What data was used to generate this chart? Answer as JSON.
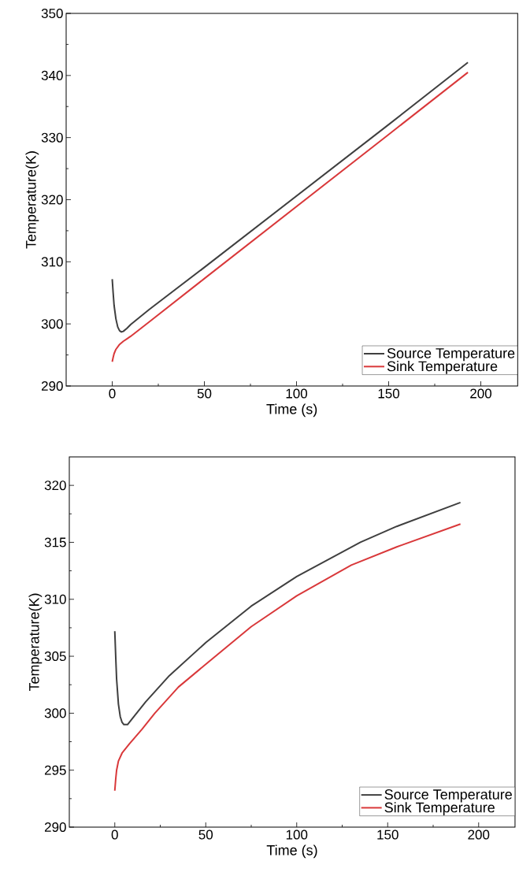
{
  "chart_data": [
    {
      "type": "line",
      "xlabel": "Time (s)",
      "ylabel": "Temperature(K)",
      "xlim": [
        -25,
        220
      ],
      "ylim": [
        290,
        350
      ],
      "xticks": [
        0,
        50,
        100,
        150,
        200
      ],
      "yticks": [
        290,
        300,
        310,
        320,
        330,
        340,
        350
      ],
      "legend": "bottom right",
      "grid": false,
      "series": [
        {
          "name": "Source Temperature",
          "color": "#3f3f3f",
          "x": [
            0,
            0.5,
            1,
            2,
            3,
            4,
            5,
            6,
            8,
            10,
            20,
            50,
            100,
            150,
            193
          ],
          "values": [
            307.2,
            305,
            303,
            300.8,
            299.5,
            298.9,
            298.7,
            298.8,
            299.3,
            299.9,
            302.3,
            309.1,
            320.6,
            332.1,
            342.1
          ]
        },
        {
          "name": "Sink Temperature",
          "color": "#d9383a",
          "x": [
            0,
            0.5,
            1,
            2,
            4,
            6,
            8,
            10,
            20,
            50,
            100,
            150,
            193
          ],
          "values": [
            293.9,
            294.6,
            295.2,
            295.9,
            296.7,
            297.2,
            297.6,
            298,
            300.3,
            307.3,
            318.9,
            330.5,
            340.5
          ]
        }
      ]
    },
    {
      "type": "line",
      "xlabel": "Time (s)",
      "ylabel": "Temperature(K)",
      "xlim": [
        -25,
        220
      ],
      "ylim": [
        290,
        322.5
      ],
      "xticks": [
        0,
        50,
        100,
        150,
        200
      ],
      "yticks": [
        290,
        295,
        300,
        305,
        310,
        315,
        320
      ],
      "legend": "bottom right",
      "grid": false,
      "series": [
        {
          "name": "Source Temperature",
          "color": "#3f3f3f",
          "x": [
            0,
            0.5,
            1,
            2,
            3,
            4,
            5,
            7,
            10,
            17,
            30,
            50,
            75,
            100,
            135,
            155,
            190
          ],
          "values": [
            307.2,
            305,
            303,
            300.8,
            299.7,
            299.2,
            299,
            299,
            299.6,
            301,
            303.3,
            306.2,
            309.4,
            312,
            315,
            316.4,
            318.5
          ]
        },
        {
          "name": "Sink Temperature",
          "color": "#d9383a",
          "x": [
            0,
            0.5,
            1,
            2,
            4,
            8,
            15,
            22,
            35,
            50,
            75,
            100,
            130,
            155,
            190
          ],
          "values": [
            293.2,
            294.2,
            295,
            295.8,
            296.5,
            297.3,
            298.6,
            300,
            302.3,
            304.3,
            307.6,
            310.3,
            313,
            314.6,
            316.6
          ]
        }
      ]
    }
  ]
}
